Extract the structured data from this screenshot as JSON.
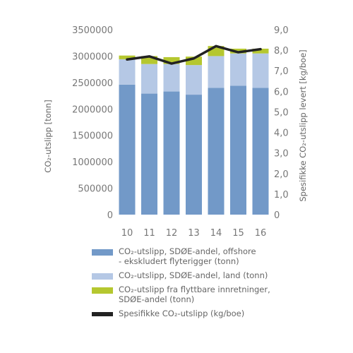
{
  "chart_data": {
    "type": "bar",
    "categories": [
      "10",
      "11",
      "12",
      "13",
      "14",
      "15",
      "16"
    ],
    "series": [
      {
        "name": "CO₂-utslipp, SDØE-andel, offshore\n- ekskludert flyterigger (tonn)",
        "kind": "stacked-bar",
        "color": "#7299c8",
        "values": [
          2460000,
          2290000,
          2330000,
          2270000,
          2400000,
          2440000,
          2400000
        ]
      },
      {
        "name": "CO₂-utslipp, SDØE-andel, land (tonn)",
        "kind": "stacked-bar",
        "color": "#b5c8e5",
        "values": [
          480000,
          560000,
          520000,
          560000,
          600000,
          610000,
          650000
        ]
      },
      {
        "name": "CO₂-utslipp fra flyttbare innretninger,\nSDØE-andel (tonn)",
        "kind": "stacked-bar",
        "color": "#b5c72f",
        "values": [
          70000,
          150000,
          130000,
          160000,
          190000,
          90000,
          90000
        ]
      },
      {
        "name": "Spesifikke CO₂-utslipp (kg/boe)",
        "kind": "line",
        "axis": "right",
        "color": "#222222",
        "values": [
          7.55,
          7.7,
          7.35,
          7.6,
          8.2,
          7.9,
          8.05
        ]
      }
    ],
    "y_left": {
      "label": "CO₂-utslipp [tonn]",
      "ylim": [
        0,
        3500000
      ],
      "ticks": [
        "0",
        "500000",
        "1000000",
        "1500000",
        "2000000",
        "2500000",
        "3000000",
        "3500000"
      ]
    },
    "y_right": {
      "label": "Spesifikke CO₂-utslipp levert [kg/boe]",
      "ylim": [
        0,
        9
      ],
      "ticks": [
        "0",
        "1,0",
        "2,0",
        "3,0",
        "4,0",
        "5,0",
        "6,0",
        "7,0",
        "8,0",
        "9,0"
      ]
    },
    "grid": false,
    "legend_position": "bottom"
  }
}
